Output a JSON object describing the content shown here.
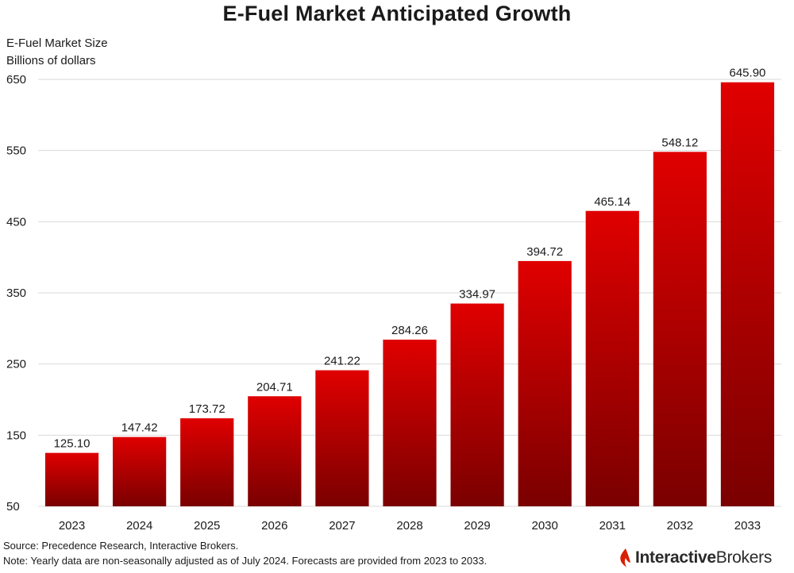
{
  "chart_data": {
    "type": "bar",
    "title": "E-Fuel Market Anticipated Growth",
    "ylabel_lines": [
      "E-Fuel Market Size",
      "Billions of dollars"
    ],
    "xlabel": "",
    "categories": [
      "2023",
      "2024",
      "2025",
      "2026",
      "2027",
      "2028",
      "2029",
      "2030",
      "2031",
      "2032",
      "2033"
    ],
    "values": [
      125.1,
      147.42,
      173.72,
      204.71,
      241.22,
      284.26,
      334.97,
      394.72,
      465.14,
      548.12,
      645.9
    ],
    "value_labels": [
      "125.10",
      "147.42",
      "173.72",
      "204.71",
      "241.22",
      "284.26",
      "334.97",
      "394.72",
      "465.14",
      "548.12",
      "645.90"
    ],
    "ylim": [
      50,
      650
    ],
    "yticks": [
      50,
      150,
      250,
      350,
      450,
      550,
      650
    ],
    "grid": true,
    "legend": "none",
    "colors": {
      "bar_top": "#e00000",
      "bar_bottom": "#7a0000",
      "grid": "#d9d9d9"
    }
  },
  "footer": {
    "source": "Source: Precedence Research, Interactive Brokers.",
    "note": "Note: Yearly data are non-seasonally adjusted as of July 2024. Forecasts are provided from 2023 to 2033.",
    "brand_bold": "Interactive",
    "brand_regular": "Brokers",
    "brand_color": "#d81e05"
  }
}
